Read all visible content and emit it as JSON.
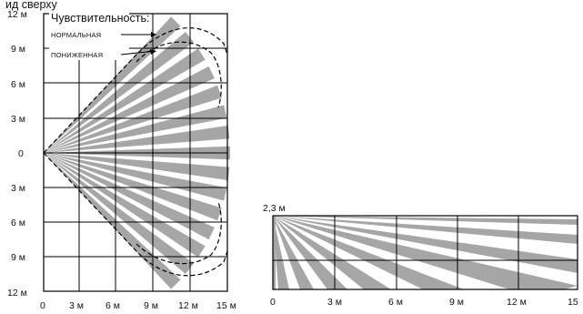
{
  "top_view": {
    "partial_caption": "ид сверху",
    "legend_title": "Чувствительность:",
    "legend_normal": "НОРМАЛЬНАЯ",
    "legend_reduced": "ПОНИЖЕННАЯ",
    "y_labels": [
      "12 м",
      "9 м",
      "6 м",
      "3 м",
      "0",
      "3 м",
      "6 м",
      "9 м",
      "12 м"
    ],
    "x_labels": [
      "0",
      "3 м",
      "6 м",
      "9 м",
      "12 м",
      "15 м"
    ]
  },
  "side_view": {
    "height_label": "2,3 м",
    "x_labels": [
      "0",
      "3 м",
      "6 м",
      "9 м",
      "12 м",
      "15"
    ]
  },
  "colors": {
    "beam": "#a6a6a6",
    "grid": "#000000",
    "dash": "#000000"
  }
}
